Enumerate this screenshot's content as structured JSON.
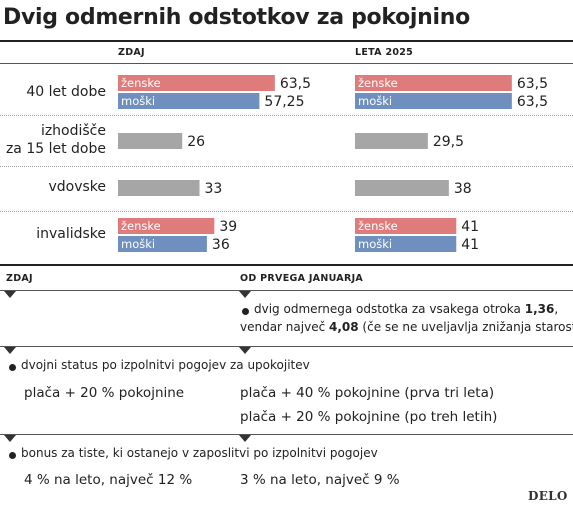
{
  "title": "Dvig odmernih odstotkov za pokojnino",
  "chart_data": {
    "type": "bar",
    "columns": [
      "ZDAJ",
      "LETA 2025"
    ],
    "categories": [
      "40 let dobe",
      "izhodišče za 15 let dobe",
      "vdovske",
      "invalidske"
    ],
    "category_lines": [
      [
        "40 let dobe"
      ],
      [
        "izhodišče",
        "za 15 let dobe"
      ],
      [
        "vdovske"
      ],
      [
        "invalidske"
      ]
    ],
    "series": [
      {
        "name": "ženske",
        "color": "#e07b7b",
        "values": [
          [
            63.5,
            null,
            null,
            39
          ],
          [
            63.5,
            null,
            null,
            41
          ]
        ],
        "labels": [
          [
            "63,5",
            null,
            null,
            "39"
          ],
          [
            "63,5",
            null,
            null,
            "41"
          ]
        ]
      },
      {
        "name": "moški",
        "color": "#6f8fbf",
        "values": [
          [
            57.25,
            null,
            null,
            36
          ],
          [
            63.5,
            null,
            null,
            41
          ]
        ],
        "labels": [
          [
            "57,25",
            null,
            null,
            "36"
          ],
          [
            "63,5",
            null,
            null,
            "41"
          ]
        ]
      },
      {
        "name": "",
        "color": "#a6a6a6",
        "values": [
          [
            null,
            26,
            33,
            null
          ],
          [
            null,
            29.5,
            38,
            null
          ]
        ],
        "labels": [
          [
            null,
            "26",
            "33",
            null
          ],
          [
            null,
            "29,5",
            "38",
            null
          ]
        ]
      }
    ],
    "xlim": [
      0,
      100
    ]
  },
  "table": {
    "headers": {
      "left": "ZDAJ",
      "right": "OD PRVEGA JANUARJA"
    },
    "row1": {
      "right_line1": "dvig odmernega odstotka za vsakega otroka ",
      "right_line1_bold": "1,36",
      "right_line1_end": ",",
      "right_line2": "vendar največ ",
      "right_line2_bold": "4,08",
      "right_line2_end": " (če se ne uveljavlja znižanja starosti)"
    },
    "row2": {
      "bullet": "dvojni status po izpolnitvi pogojev za upokojitev",
      "left": "plača + 20 % pokojnine",
      "right1_main": "plača + 40 % pokojnine",
      "right1_note": " (prva tri leta)",
      "right2_main": "plača + 20 % pokojnine",
      "right2_note": " (po treh letih)"
    },
    "row3": {
      "bullet": "bonus za tiste, ki ostanejo v zaposlitvi po izpolnitvi pogojev",
      "left": "4 % na leto, največ 12 %",
      "right": "3 % na leto, največ 9 %"
    }
  },
  "logo": "DELO"
}
